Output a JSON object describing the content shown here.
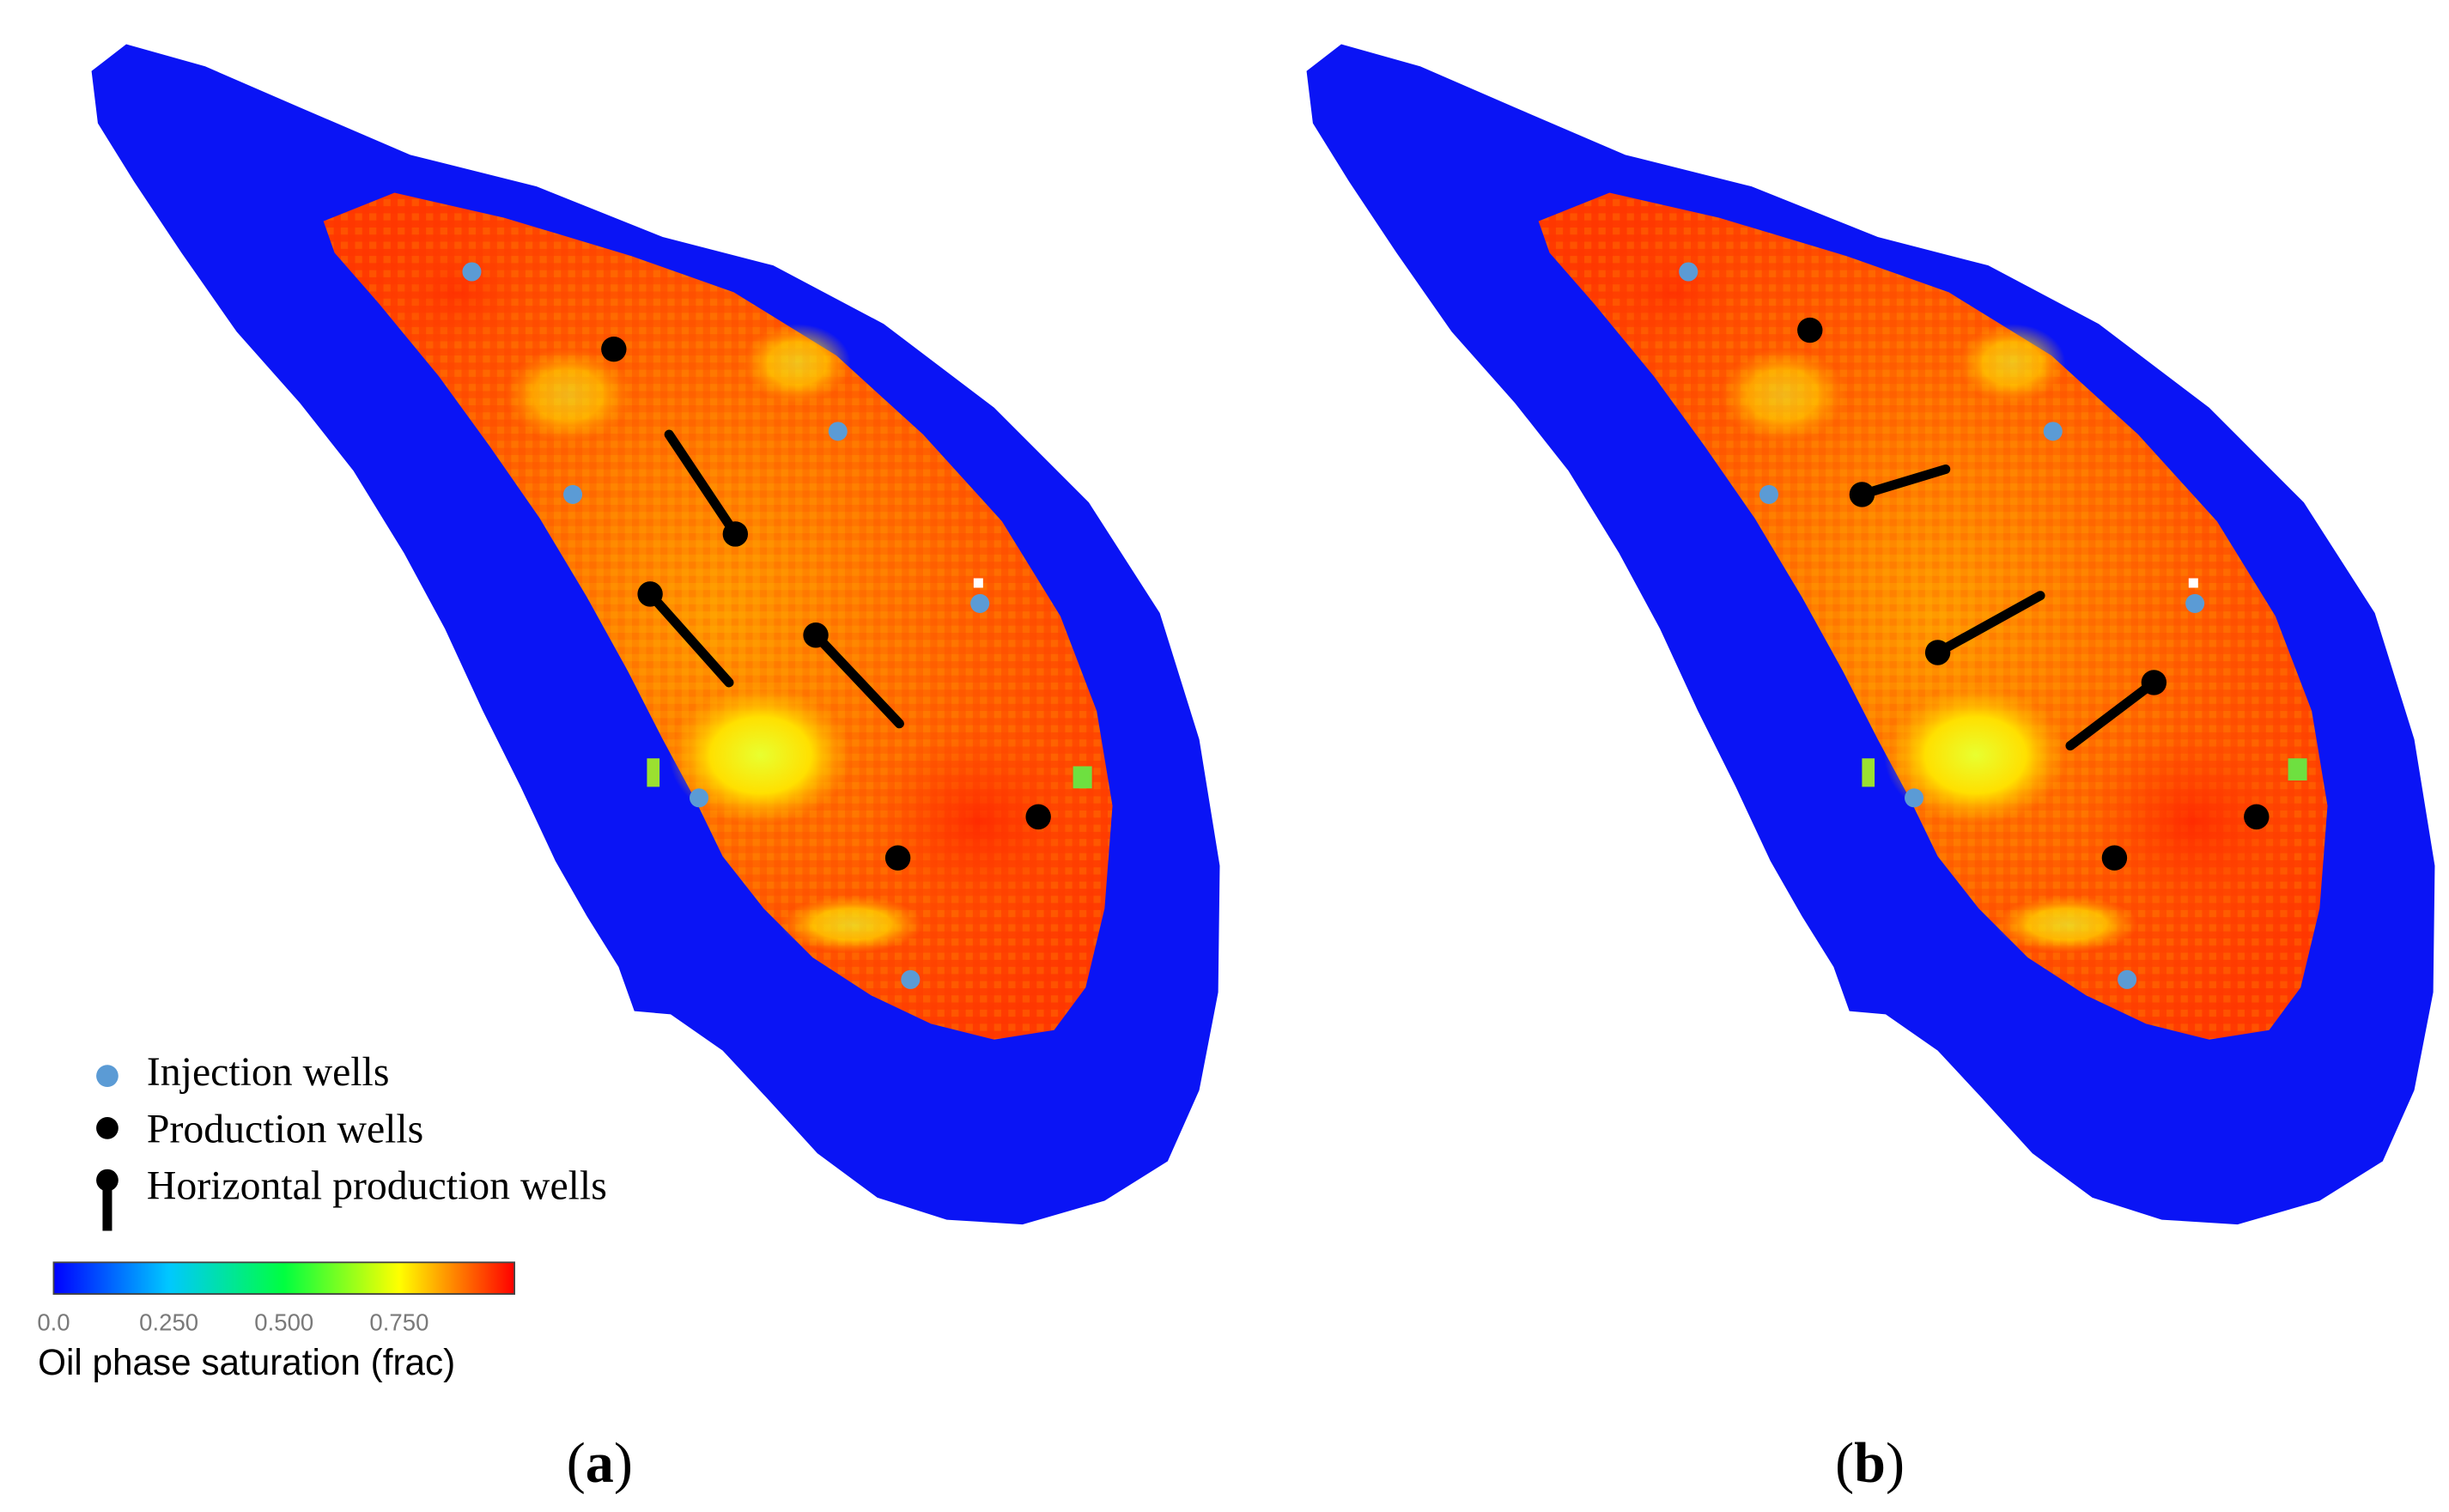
{
  "colors": {
    "water": "#0a14f5",
    "oil_high": "#ff3300",
    "oil_mid": "#ff8800",
    "oil_low": "#ffe800",
    "injector": "#5b9bd5",
    "producer": "#000000"
  },
  "legend": {
    "items": [
      {
        "label": "Injection wells",
        "icon": "blue-dot-icon"
      },
      {
        "label": "Production wells",
        "icon": "black-dot-icon"
      },
      {
        "label": "Horizontal production wells",
        "icon": "horizontal-well-icon"
      }
    ]
  },
  "colorbar": {
    "ticks": [
      "0.0",
      "0.250",
      "0.500",
      "0.750"
    ],
    "tick_values": [
      0.0,
      0.25,
      0.5,
      0.75
    ],
    "range": [
      0.0,
      1.0
    ],
    "label": "Oil phase saturation (frac)",
    "stops": [
      "#0000ff",
      "#00c8ff",
      "#00ff40",
      "#ffff00",
      "#ff0000"
    ]
  },
  "panels": [
    {
      "label_open": "(",
      "label_letter": "a",
      "label_close": ")"
    },
    {
      "label_open": "(",
      "label_letter": "b",
      "label_close": ")"
    }
  ]
}
